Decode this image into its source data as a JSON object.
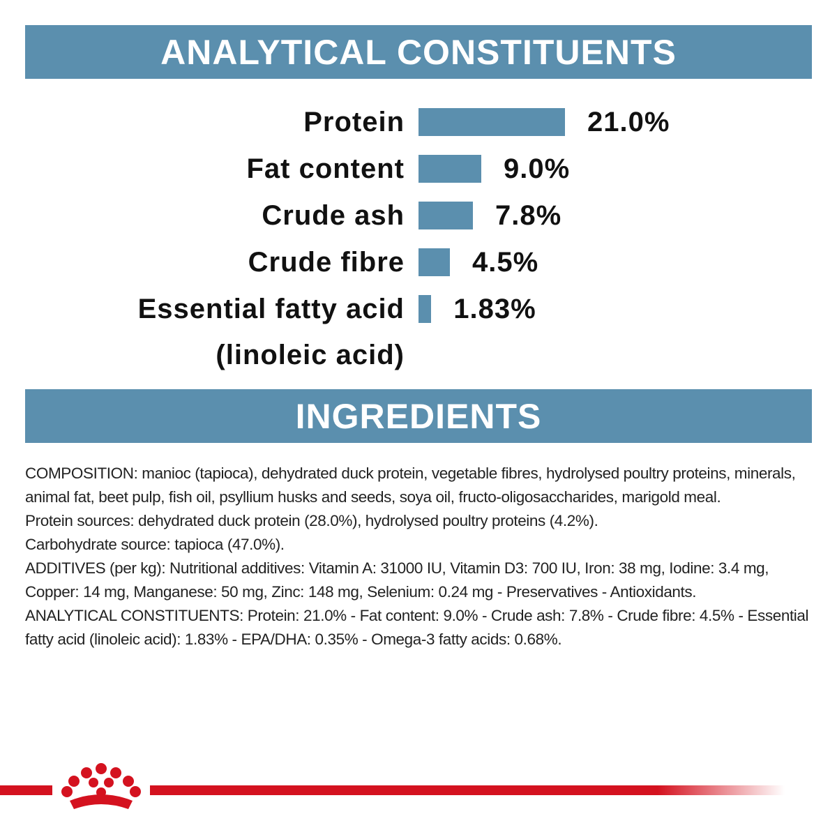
{
  "header": {
    "title": "ANALYTICAL CONSTITUENTS"
  },
  "chart_data": {
    "type": "bar",
    "orientation": "horizontal",
    "color": "#5b8fae",
    "categories": [
      "Protein",
      "Fat content",
      "Crude ash",
      "Crude fibre",
      "Essential fatty acid\n(linoleic acid)"
    ],
    "values": [
      21.0,
      9.0,
      7.8,
      4.5,
      1.83
    ],
    "value_labels": [
      "21.0%",
      "9.0%",
      "7.8%",
      "4.5%",
      "1.83%"
    ]
  },
  "ingredients": {
    "title": "INGREDIENTS",
    "paragraphs": [
      "COMPOSITION: manioc (tapioca), dehydrated duck protein, vegetable fibres, hydrolysed poultry proteins, minerals, animal fat, beet pulp, fish oil, psyllium husks and seeds, soya oil, fructo-oligosaccharides, marigold meal.",
      "Protein sources: dehydrated duck protein (28.0%), hydrolysed poultry proteins (4.2%).",
      "Carbohydrate source: tapioca (47.0%).",
      "ADDITIVES (per kg): Nutritional additives: Vitamin A: 31000 IU, Vitamin D3: 700 IU, Iron: 38 mg, Iodine: 3.4 mg, Copper: 14 mg, Manganese: 50 mg, Zinc: 148 mg, Selenium: 0.24 mg - Preservatives - Antioxidants.",
      "ANALYTICAL CONSTITUENTS: Protein: 21.0% - Fat content: 9.0% - Crude ash: 7.8% - Crude fibre: 4.5% - Essential fatty acid (linoleic acid): 1.83% - EPA/DHA: 0.35% - Omega-3 fatty acids: 0.68%."
    ]
  }
}
